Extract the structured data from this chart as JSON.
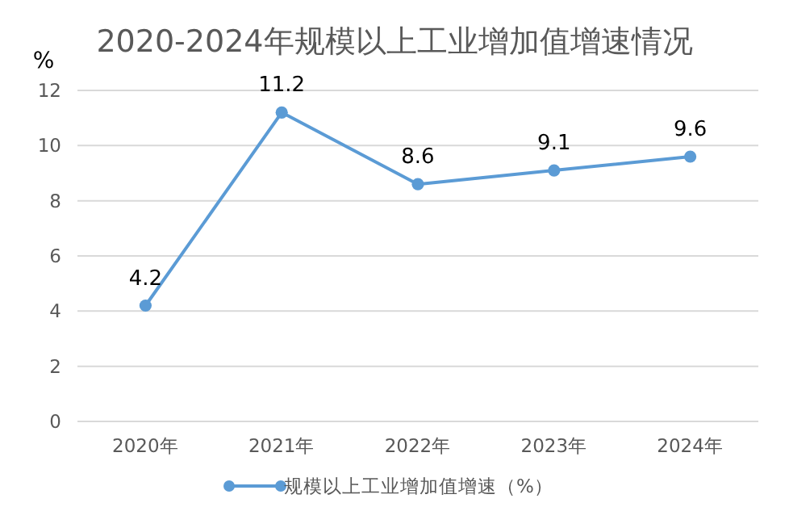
{
  "chart_data": {
    "type": "line",
    "title": "2020-2024年规模以上工业增加值增速情况",
    "ylabel": "%",
    "categories": [
      "2020年",
      "2021年",
      "2022年",
      "2023年",
      "2024年"
    ],
    "series": [
      {
        "name": "规模以上工业增加值增速（%）",
        "color": "#5b9bd5",
        "values": [
          4.2,
          11.2,
          8.6,
          9.1,
          9.6
        ]
      }
    ],
    "ylim": [
      0,
      12
    ],
    "yticks": [
      0,
      2,
      4,
      6,
      8,
      10,
      12
    ],
    "grid": "y",
    "legend": "bottom",
    "marker": "circle",
    "line_style": "solid",
    "data_labels": true
  }
}
